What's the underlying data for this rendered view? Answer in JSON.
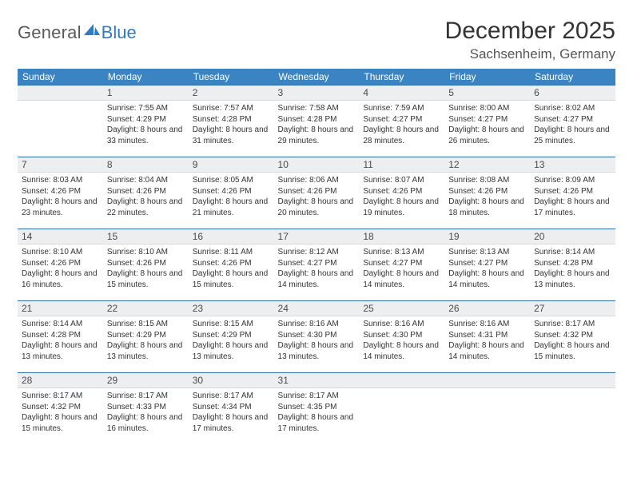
{
  "logo": {
    "text_general": "General",
    "text_blue": "Blue"
  },
  "title": "December 2025",
  "location": "Sachsenheim, Germany",
  "header_bg": "#3b84c4",
  "daybar_bg": "#eceef0",
  "daybar_border": "#2f6da8",
  "weekdays": [
    "Sunday",
    "Monday",
    "Tuesday",
    "Wednesday",
    "Thursday",
    "Friday",
    "Saturday"
  ],
  "weeks": [
    [
      {
        "n": "",
        "sunrise": "",
        "sunset": "",
        "daylight": ""
      },
      {
        "n": "1",
        "sunrise": "Sunrise: 7:55 AM",
        "sunset": "Sunset: 4:29 PM",
        "daylight": "Daylight: 8 hours and 33 minutes."
      },
      {
        "n": "2",
        "sunrise": "Sunrise: 7:57 AM",
        "sunset": "Sunset: 4:28 PM",
        "daylight": "Daylight: 8 hours and 31 minutes."
      },
      {
        "n": "3",
        "sunrise": "Sunrise: 7:58 AM",
        "sunset": "Sunset: 4:28 PM",
        "daylight": "Daylight: 8 hours and 29 minutes."
      },
      {
        "n": "4",
        "sunrise": "Sunrise: 7:59 AM",
        "sunset": "Sunset: 4:27 PM",
        "daylight": "Daylight: 8 hours and 28 minutes."
      },
      {
        "n": "5",
        "sunrise": "Sunrise: 8:00 AM",
        "sunset": "Sunset: 4:27 PM",
        "daylight": "Daylight: 8 hours and 26 minutes."
      },
      {
        "n": "6",
        "sunrise": "Sunrise: 8:02 AM",
        "sunset": "Sunset: 4:27 PM",
        "daylight": "Daylight: 8 hours and 25 minutes."
      }
    ],
    [
      {
        "n": "7",
        "sunrise": "Sunrise: 8:03 AM",
        "sunset": "Sunset: 4:26 PM",
        "daylight": "Daylight: 8 hours and 23 minutes."
      },
      {
        "n": "8",
        "sunrise": "Sunrise: 8:04 AM",
        "sunset": "Sunset: 4:26 PM",
        "daylight": "Daylight: 8 hours and 22 minutes."
      },
      {
        "n": "9",
        "sunrise": "Sunrise: 8:05 AM",
        "sunset": "Sunset: 4:26 PM",
        "daylight": "Daylight: 8 hours and 21 minutes."
      },
      {
        "n": "10",
        "sunrise": "Sunrise: 8:06 AM",
        "sunset": "Sunset: 4:26 PM",
        "daylight": "Daylight: 8 hours and 20 minutes."
      },
      {
        "n": "11",
        "sunrise": "Sunrise: 8:07 AM",
        "sunset": "Sunset: 4:26 PM",
        "daylight": "Daylight: 8 hours and 19 minutes."
      },
      {
        "n": "12",
        "sunrise": "Sunrise: 8:08 AM",
        "sunset": "Sunset: 4:26 PM",
        "daylight": "Daylight: 8 hours and 18 minutes."
      },
      {
        "n": "13",
        "sunrise": "Sunrise: 8:09 AM",
        "sunset": "Sunset: 4:26 PM",
        "daylight": "Daylight: 8 hours and 17 minutes."
      }
    ],
    [
      {
        "n": "14",
        "sunrise": "Sunrise: 8:10 AM",
        "sunset": "Sunset: 4:26 PM",
        "daylight": "Daylight: 8 hours and 16 minutes."
      },
      {
        "n": "15",
        "sunrise": "Sunrise: 8:10 AM",
        "sunset": "Sunset: 4:26 PM",
        "daylight": "Daylight: 8 hours and 15 minutes."
      },
      {
        "n": "16",
        "sunrise": "Sunrise: 8:11 AM",
        "sunset": "Sunset: 4:26 PM",
        "daylight": "Daylight: 8 hours and 15 minutes."
      },
      {
        "n": "17",
        "sunrise": "Sunrise: 8:12 AM",
        "sunset": "Sunset: 4:27 PM",
        "daylight": "Daylight: 8 hours and 14 minutes."
      },
      {
        "n": "18",
        "sunrise": "Sunrise: 8:13 AM",
        "sunset": "Sunset: 4:27 PM",
        "daylight": "Daylight: 8 hours and 14 minutes."
      },
      {
        "n": "19",
        "sunrise": "Sunrise: 8:13 AM",
        "sunset": "Sunset: 4:27 PM",
        "daylight": "Daylight: 8 hours and 14 minutes."
      },
      {
        "n": "20",
        "sunrise": "Sunrise: 8:14 AM",
        "sunset": "Sunset: 4:28 PM",
        "daylight": "Daylight: 8 hours and 13 minutes."
      }
    ],
    [
      {
        "n": "21",
        "sunrise": "Sunrise: 8:14 AM",
        "sunset": "Sunset: 4:28 PM",
        "daylight": "Daylight: 8 hours and 13 minutes."
      },
      {
        "n": "22",
        "sunrise": "Sunrise: 8:15 AM",
        "sunset": "Sunset: 4:29 PM",
        "daylight": "Daylight: 8 hours and 13 minutes."
      },
      {
        "n": "23",
        "sunrise": "Sunrise: 8:15 AM",
        "sunset": "Sunset: 4:29 PM",
        "daylight": "Daylight: 8 hours and 13 minutes."
      },
      {
        "n": "24",
        "sunrise": "Sunrise: 8:16 AM",
        "sunset": "Sunset: 4:30 PM",
        "daylight": "Daylight: 8 hours and 13 minutes."
      },
      {
        "n": "25",
        "sunrise": "Sunrise: 8:16 AM",
        "sunset": "Sunset: 4:30 PM",
        "daylight": "Daylight: 8 hours and 14 minutes."
      },
      {
        "n": "26",
        "sunrise": "Sunrise: 8:16 AM",
        "sunset": "Sunset: 4:31 PM",
        "daylight": "Daylight: 8 hours and 14 minutes."
      },
      {
        "n": "27",
        "sunrise": "Sunrise: 8:17 AM",
        "sunset": "Sunset: 4:32 PM",
        "daylight": "Daylight: 8 hours and 15 minutes."
      }
    ],
    [
      {
        "n": "28",
        "sunrise": "Sunrise: 8:17 AM",
        "sunset": "Sunset: 4:32 PM",
        "daylight": "Daylight: 8 hours and 15 minutes."
      },
      {
        "n": "29",
        "sunrise": "Sunrise: 8:17 AM",
        "sunset": "Sunset: 4:33 PM",
        "daylight": "Daylight: 8 hours and 16 minutes."
      },
      {
        "n": "30",
        "sunrise": "Sunrise: 8:17 AM",
        "sunset": "Sunset: 4:34 PM",
        "daylight": "Daylight: 8 hours and 17 minutes."
      },
      {
        "n": "31",
        "sunrise": "Sunrise: 8:17 AM",
        "sunset": "Sunset: 4:35 PM",
        "daylight": "Daylight: 8 hours and 17 minutes."
      },
      {
        "n": "",
        "sunrise": "",
        "sunset": "",
        "daylight": ""
      },
      {
        "n": "",
        "sunrise": "",
        "sunset": "",
        "daylight": ""
      },
      {
        "n": "",
        "sunrise": "",
        "sunset": "",
        "daylight": ""
      }
    ]
  ]
}
